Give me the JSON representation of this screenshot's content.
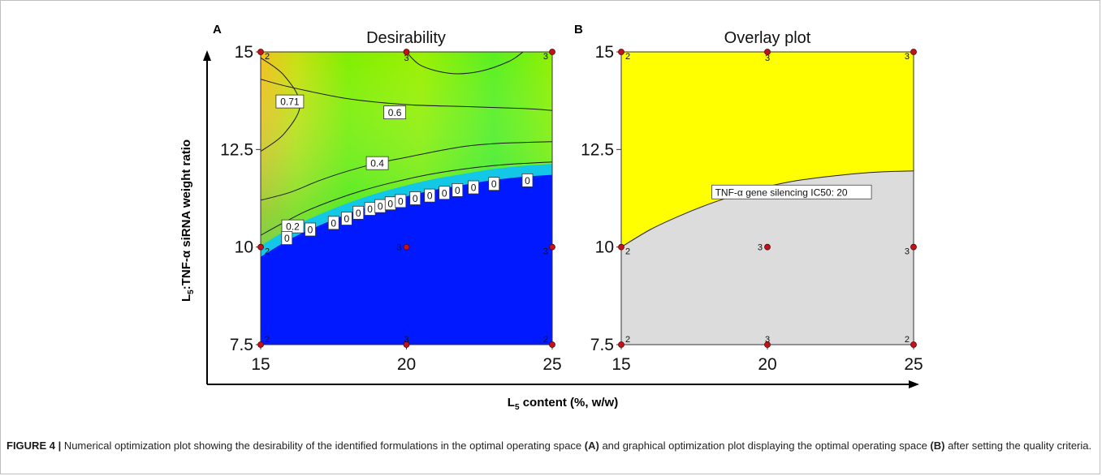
{
  "figure": {
    "panel_a_letter": "A",
    "panel_b_letter": "B",
    "x_axis_label_main": "L",
    "x_axis_label_sub": "5",
    "x_axis_label_rest": " content (%, w/w)",
    "y_axis_label_main": "L",
    "y_axis_label_sub": "5",
    "y_axis_label_rest": ":TNF-α siRNA weight ratio"
  },
  "caption": {
    "label": "FIGURE 4 |",
    "part1": " Numerical optimization plot showing the desirability of the identified formulations in the optimal operating space ",
    "ref_a": "(A)",
    "part2": " and graphical optimization plot displaying the optimal operating space ",
    "ref_b": "(B)",
    "part3": " after setting the quality criteria."
  },
  "chart_data": [
    {
      "type": "heatmap",
      "panel": "A",
      "title": "Desirability",
      "xlim": [
        15,
        25
      ],
      "ylim": [
        7.5,
        15
      ],
      "x_ticks": [
        "15",
        "20",
        "25"
      ],
      "y_ticks": [
        "15",
        "12.5",
        "10",
        "7.5"
      ],
      "colors": {
        "low": "#0019ff",
        "mid": "#00e676",
        "high_mid": "#8cf000",
        "high": "#f2b418"
      },
      "boundary_zero_y": [
        {
          "x": 15,
          "y": 9.75
        },
        {
          "x": 16,
          "y": 10.2
        },
        {
          "x": 17,
          "y": 10.55
        },
        {
          "x": 18,
          "y": 10.85
        },
        {
          "x": 19,
          "y": 11.1
        },
        {
          "x": 20,
          "y": 11.3
        },
        {
          "x": 21,
          "y": 11.47
        },
        {
          "x": 22,
          "y": 11.6
        },
        {
          "x": 23,
          "y": 11.72
        },
        {
          "x": 24,
          "y": 11.8
        },
        {
          "x": 25,
          "y": 11.85
        }
      ],
      "contours": [
        {
          "level": "0.71",
          "points": [
            {
              "x": 15,
              "y": 14.85
            },
            {
              "x": 15.8,
              "y": 14.4
            },
            {
              "x": 16.35,
              "y": 13.65
            },
            {
              "x": 15.8,
              "y": 12.9
            },
            {
              "x": 15,
              "y": 12.45
            }
          ]
        },
        {
          "level": "0.6",
          "points": [
            {
              "x": 15,
              "y": 14.3
            },
            {
              "x": 16,
              "y": 14.1
            },
            {
              "x": 18,
              "y": 13.8
            },
            {
              "x": 20,
              "y": 13.65
            },
            {
              "x": 22,
              "y": 13.6
            },
            {
              "x": 24,
              "y": 13.55
            },
            {
              "x": 25,
              "y": 13.5
            }
          ]
        },
        {
          "level": "0.4",
          "points": [
            {
              "x": 15,
              "y": 11.2
            },
            {
              "x": 16,
              "y": 11.4
            },
            {
              "x": 17,
              "y": 11.7
            },
            {
              "x": 18,
              "y": 11.95
            },
            {
              "x": 19,
              "y": 12.15
            },
            {
              "x": 20,
              "y": 12.3
            },
            {
              "x": 21,
              "y": 12.45
            },
            {
              "x": 22,
              "y": 12.58
            },
            {
              "x": 23,
              "y": 12.65
            },
            {
              "x": 24,
              "y": 12.68
            },
            {
              "x": 25,
              "y": 12.7
            }
          ]
        },
        {
          "level": "0.2",
          "points": [
            {
              "x": 15,
              "y": 10.3
            },
            {
              "x": 15.6,
              "y": 10.55
            },
            {
              "x": 16.5,
              "y": 10.9
            },
            {
              "x": 17.5,
              "y": 11.2
            },
            {
              "x": 18.5,
              "y": 11.45
            },
            {
              "x": 19.5,
              "y": 11.65
            },
            {
              "x": 20.5,
              "y": 11.82
            },
            {
              "x": 21.5,
              "y": 11.95
            },
            {
              "x": 22.5,
              "y": 12.05
            },
            {
              "x": 23.5,
              "y": 12.12
            },
            {
              "x": 25,
              "y": 12.18
            }
          ]
        },
        {
          "level": "",
          "points": [
            {
              "x": 20,
              "y": 15
            },
            {
              "x": 20.5,
              "y": 14.65
            },
            {
              "x": 21.5,
              "y": 14.45
            },
            {
              "x": 22.5,
              "y": 14.5
            },
            {
              "x": 23.5,
              "y": 14.75
            },
            {
              "x": 24,
              "y": 15
            }
          ]
        }
      ],
      "contour_labels": [
        {
          "text": "0.71",
          "x": 16.0,
          "y": 13.73
        },
        {
          "text": "0.6",
          "x": 19.6,
          "y": 13.45
        },
        {
          "text": "0.4",
          "x": 19.0,
          "y": 12.15
        },
        {
          "text": "0.2",
          "x": 16.1,
          "y": 10.53
        },
        {
          "text": "0",
          "x": 15.9,
          "y": 10.23
        },
        {
          "text": "0",
          "x": 16.7,
          "y": 10.45
        },
        {
          "text": "0",
          "x": 17.5,
          "y": 10.62
        },
        {
          "text": "0",
          "x": 17.95,
          "y": 10.73
        },
        {
          "text": "0",
          "x": 18.35,
          "y": 10.88
        },
        {
          "text": "0",
          "x": 18.75,
          "y": 10.98
        },
        {
          "text": "0",
          "x": 19.1,
          "y": 11.05
        },
        {
          "text": "0",
          "x": 19.45,
          "y": 11.12
        },
        {
          "text": "0",
          "x": 19.8,
          "y": 11.18
        },
        {
          "text": "0",
          "x": 20.3,
          "y": 11.25
        },
        {
          "text": "0",
          "x": 20.8,
          "y": 11.32
        },
        {
          "text": "0",
          "x": 21.3,
          "y": 11.39
        },
        {
          "text": "0",
          "x": 21.75,
          "y": 11.46
        },
        {
          "text": "0",
          "x": 22.3,
          "y": 11.53
        },
        {
          "text": "0",
          "x": 23.0,
          "y": 11.62
        },
        {
          "text": "0",
          "x": 24.15,
          "y": 11.71
        }
      ],
      "design_points": [
        {
          "x": 15,
          "y": 15,
          "count": "2"
        },
        {
          "x": 20,
          "y": 15,
          "count": "3"
        },
        {
          "x": 25,
          "y": 15,
          "count": "3"
        },
        {
          "x": 15,
          "y": 10,
          "count": "2"
        },
        {
          "x": 20,
          "y": 10,
          "count": "3"
        },
        {
          "x": 25,
          "y": 10,
          "count": "3"
        },
        {
          "x": 15,
          "y": 7.5,
          "count": "2"
        },
        {
          "x": 20,
          "y": 7.5,
          "count": "3"
        },
        {
          "x": 25,
          "y": 7.5,
          "count": "2"
        }
      ]
    },
    {
      "type": "area",
      "panel": "B",
      "title": "Overlay plot",
      "xlim": [
        15,
        25
      ],
      "ylim": [
        7.5,
        15
      ],
      "x_ticks": [
        "15",
        "20",
        "25"
      ],
      "y_ticks": [
        "15",
        "12.5",
        "10",
        "7.5"
      ],
      "colors": {
        "feasible": "#ffff00",
        "infeasible": "#dcdcdc"
      },
      "boundary": [
        {
          "x": 15,
          "y": 10
        },
        {
          "x": 16,
          "y": 10.45
        },
        {
          "x": 17,
          "y": 10.8
        },
        {
          "x": 18,
          "y": 11.1
        },
        {
          "x": 19,
          "y": 11.35
        },
        {
          "x": 20,
          "y": 11.55
        },
        {
          "x": 21,
          "y": 11.7
        },
        {
          "x": 22,
          "y": 11.8
        },
        {
          "x": 23,
          "y": 11.88
        },
        {
          "x": 24,
          "y": 11.93
        },
        {
          "x": 25,
          "y": 11.95
        }
      ],
      "boundary_label": "TNF-α gene silencing IC50: 20",
      "boundary_label_pos": {
        "x": 18.1,
        "y": 11.4
      },
      "design_points": [
        {
          "x": 15,
          "y": 15,
          "count": "2"
        },
        {
          "x": 20,
          "y": 15,
          "count": "3"
        },
        {
          "x": 25,
          "y": 15,
          "count": "3"
        },
        {
          "x": 15,
          "y": 10,
          "count": "2"
        },
        {
          "x": 20,
          "y": 10,
          "count": "3"
        },
        {
          "x": 25,
          "y": 10,
          "count": "3"
        },
        {
          "x": 15,
          "y": 7.5,
          "count": "2"
        },
        {
          "x": 20,
          "y": 7.5,
          "count": "3"
        },
        {
          "x": 25,
          "y": 7.5,
          "count": "2"
        }
      ]
    }
  ]
}
